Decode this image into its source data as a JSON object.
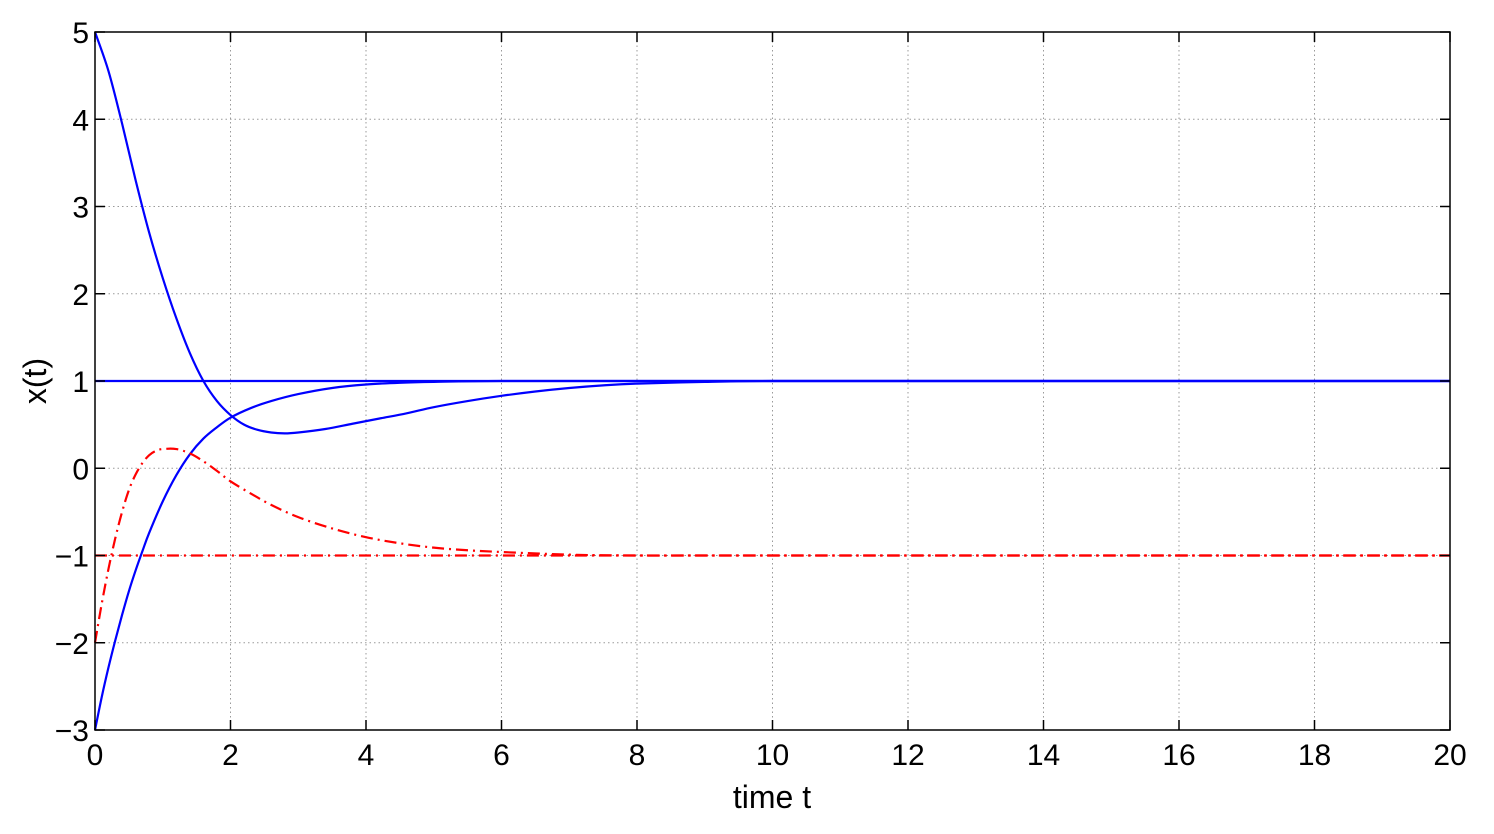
{
  "chart_data": {
    "type": "line",
    "title": "",
    "xlabel": "time t",
    "ylabel": "x(t)",
    "xlim": [
      0,
      20
    ],
    "ylim": [
      -3,
      5
    ],
    "xticks": [
      0,
      2,
      4,
      6,
      8,
      10,
      12,
      14,
      16,
      18,
      20
    ],
    "yticks": [
      -3,
      -2,
      -1,
      0,
      1,
      2,
      3,
      4,
      5
    ],
    "xtick_labels": [
      "0",
      "2",
      "4",
      "6",
      "8",
      "10",
      "12",
      "14",
      "16",
      "18",
      "20"
    ],
    "ytick_labels": [
      "−3",
      "−2",
      "−1",
      "0",
      "1",
      "2",
      "3",
      "4",
      "5"
    ],
    "grid": true,
    "series": [
      {
        "color": "#0000ff",
        "style": "solid",
        "x": [
          0,
          0.2,
          0.4,
          0.6,
          0.8,
          1.0,
          1.2,
          1.4,
          1.6,
          1.8,
          2.0,
          2.2,
          2.4,
          2.6,
          2.8,
          3.0,
          3.4,
          3.8,
          4.2,
          4.6,
          5.0,
          5.5,
          6.0,
          6.5,
          7.0,
          7.5,
          8.0,
          9.0,
          10.0,
          12.0,
          15.0,
          20.0
        ],
        "y": [
          5.0,
          4.55,
          3.95,
          3.3,
          2.7,
          2.18,
          1.72,
          1.32,
          1.0,
          0.77,
          0.61,
          0.5,
          0.44,
          0.41,
          0.4,
          0.41,
          0.45,
          0.51,
          0.57,
          0.63,
          0.7,
          0.77,
          0.83,
          0.88,
          0.92,
          0.95,
          0.97,
          0.99,
          1.0,
          1.0,
          1.0,
          1.0
        ]
      },
      {
        "color": "#0000ff",
        "style": "solid",
        "x": [
          0,
          0.1,
          0.2,
          0.3,
          0.4,
          0.5,
          0.6,
          0.7,
          0.8,
          1.0,
          1.2,
          1.4,
          1.6,
          1.8,
          2.0,
          2.3,
          2.6,
          3.0,
          3.5,
          4.0,
          4.5,
          5.0,
          6.0,
          8.0,
          10.0,
          20.0
        ],
        "y": [
          -3.0,
          -2.62,
          -2.28,
          -1.97,
          -1.68,
          -1.41,
          -1.17,
          -0.95,
          -0.74,
          -0.38,
          -0.08,
          0.16,
          0.34,
          0.47,
          0.58,
          0.69,
          0.77,
          0.85,
          0.92,
          0.96,
          0.98,
          0.99,
          1.0,
          1.0,
          1.0,
          1.0
        ]
      },
      {
        "color": "#0000ff",
        "style": "solid",
        "x": [
          0,
          20
        ],
        "y": [
          1,
          1
        ]
      },
      {
        "color": "#ff0000",
        "style": "dashdot",
        "x": [
          0,
          0.1,
          0.2,
          0.3,
          0.4,
          0.5,
          0.6,
          0.7,
          0.8,
          0.9,
          1.0,
          1.2,
          1.4,
          1.6,
          1.8,
          2.0,
          2.3,
          2.6,
          3.0,
          3.5,
          4.0,
          4.5,
          5.0,
          5.5,
          6.0,
          7.0,
          8.0,
          10.0,
          20.0
        ],
        "y": [
          -2.0,
          -1.55,
          -1.15,
          -0.8,
          -0.5,
          -0.25,
          -0.07,
          0.06,
          0.15,
          0.2,
          0.22,
          0.22,
          0.17,
          0.08,
          -0.03,
          -0.15,
          -0.29,
          -0.42,
          -0.56,
          -0.69,
          -0.79,
          -0.86,
          -0.91,
          -0.94,
          -0.96,
          -0.99,
          -1.0,
          -1.0,
          -1.0
        ]
      },
      {
        "color": "#ff0000",
        "style": "dashdot",
        "x": [
          0,
          20
        ],
        "y": [
          -1,
          -1
        ]
      }
    ]
  }
}
